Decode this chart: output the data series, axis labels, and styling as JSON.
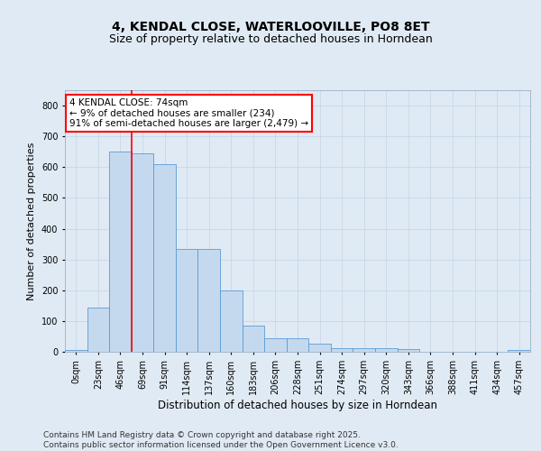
{
  "title": "4, KENDAL CLOSE, WATERLOOVILLE, PO8 8ET",
  "subtitle": "Size of property relative to detached houses in Horndean",
  "xlabel": "Distribution of detached houses by size in Horndean",
  "ylabel": "Number of detached properties",
  "categories": [
    "0sqm",
    "23sqm",
    "46sqm",
    "69sqm",
    "91sqm",
    "114sqm",
    "137sqm",
    "160sqm",
    "183sqm",
    "206sqm",
    "228sqm",
    "251sqm",
    "274sqm",
    "297sqm",
    "320sqm",
    "343sqm",
    "366sqm",
    "388sqm",
    "411sqm",
    "434sqm",
    "457sqm"
  ],
  "values": [
    5,
    145,
    650,
    645,
    610,
    335,
    335,
    200,
    85,
    43,
    43,
    27,
    12,
    13,
    12,
    8,
    0,
    0,
    0,
    0,
    5
  ],
  "bar_color": "#c5d9ee",
  "bar_edge_color": "#5b9bd5",
  "vline_index": 3,
  "vline_color": "red",
  "annotation_text": "4 KENDAL CLOSE: 74sqm\n← 9% of detached houses are smaller (234)\n91% of semi-detached houses are larger (2,479) →",
  "annotation_box_edgecolor": "red",
  "annotation_box_facecolor": "white",
  "grid_color": "#c8d8e8",
  "background_color": "#e0eaf4",
  "ylim": [
    0,
    850
  ],
  "yticks": [
    0,
    100,
    200,
    300,
    400,
    500,
    600,
    700,
    800
  ],
  "title_fontsize": 10,
  "subtitle_fontsize": 9,
  "xlabel_fontsize": 8.5,
  "ylabel_fontsize": 8,
  "tick_fontsize": 7,
  "annotation_fontsize": 7.5,
  "footer": "Contains HM Land Registry data © Crown copyright and database right 2025.\nContains public sector information licensed under the Open Government Licence v3.0.",
  "footer_fontsize": 6.5
}
